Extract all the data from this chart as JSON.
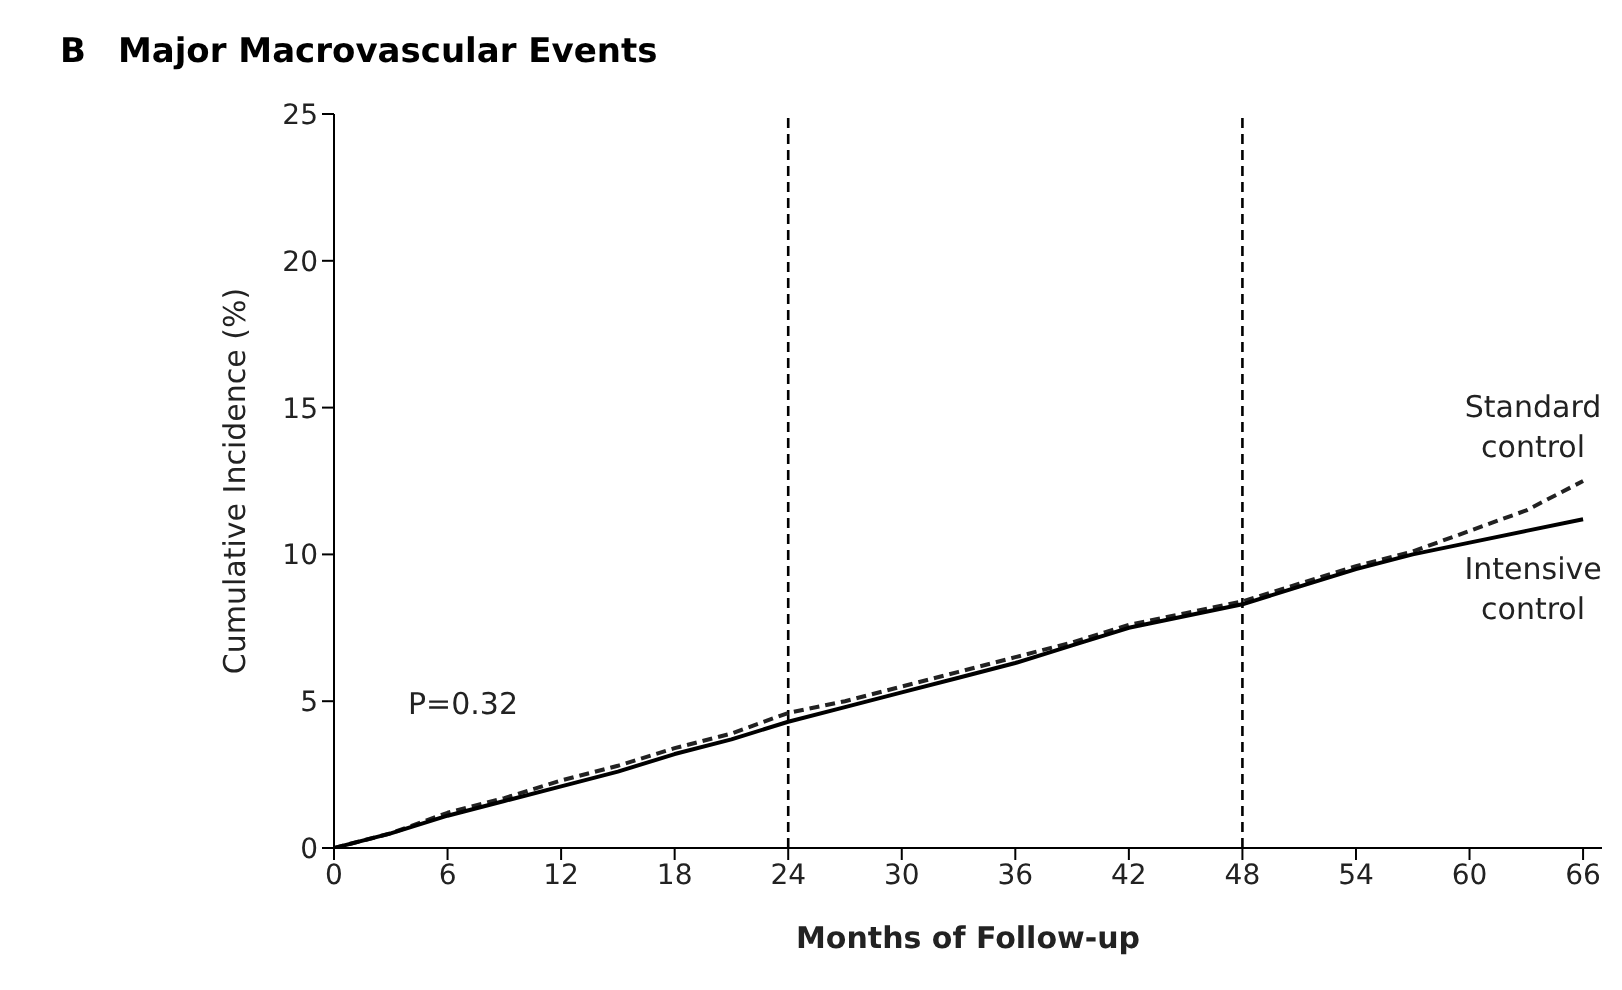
{
  "chart_data": {
    "type": "line",
    "title": "Major Macrovascular Events",
    "xlabel": "Months of Follow-up",
    "ylabel": "Cumulative Incidence (%)",
    "annotations": [
      "B",
      "P=0.32"
    ],
    "series": [
      {
        "name": "Standard control",
        "color": "#222222",
        "line_style": "dashed",
        "x": [
          0,
          3,
          6,
          9,
          12,
          15,
          18,
          21,
          24,
          27,
          30,
          33,
          36,
          39,
          42,
          45,
          48,
          51,
          54,
          57,
          60,
          63,
          66
        ],
        "values": [
          0,
          0.5,
          1.2,
          1.7,
          2.3,
          2.8,
          3.4,
          3.9,
          4.6,
          5.0,
          5.5,
          6.0,
          6.5,
          7.0,
          7.6,
          8.0,
          8.4,
          9.0,
          9.6,
          10.1,
          10.8,
          11.5,
          12.5
        ]
      },
      {
        "name": "Intensive control",
        "color": "#000000",
        "line_style": "solid",
        "x": [
          0,
          3,
          6,
          9,
          12,
          15,
          18,
          21,
          24,
          27,
          30,
          33,
          36,
          39,
          42,
          45,
          48,
          51,
          54,
          57,
          60,
          63,
          66
        ],
        "values": [
          0,
          0.5,
          1.1,
          1.6,
          2.1,
          2.6,
          3.2,
          3.7,
          4.3,
          4.8,
          5.3,
          5.8,
          6.3,
          6.9,
          7.5,
          7.9,
          8.3,
          8.9,
          9.5,
          10.0,
          10.4,
          10.8,
          11.2
        ]
      }
    ],
    "xlim": [
      0,
      67
    ],
    "xticks": [
      0,
      6,
      12,
      18,
      24,
      30,
      36,
      42,
      48,
      54,
      60,
      66
    ],
    "ylim": [
      0,
      25
    ],
    "yticks": [
      0,
      5,
      10,
      15,
      20,
      25
    ],
    "ref_lines": [
      {
        "axis": "x",
        "value": 24,
        "line_style": "dashed",
        "color": "#000000"
      },
      {
        "axis": "x",
        "value": 48,
        "line_style": "dashed",
        "color": "#000000"
      }
    ],
    "grid": false,
    "legend": false,
    "marker": "none"
  }
}
